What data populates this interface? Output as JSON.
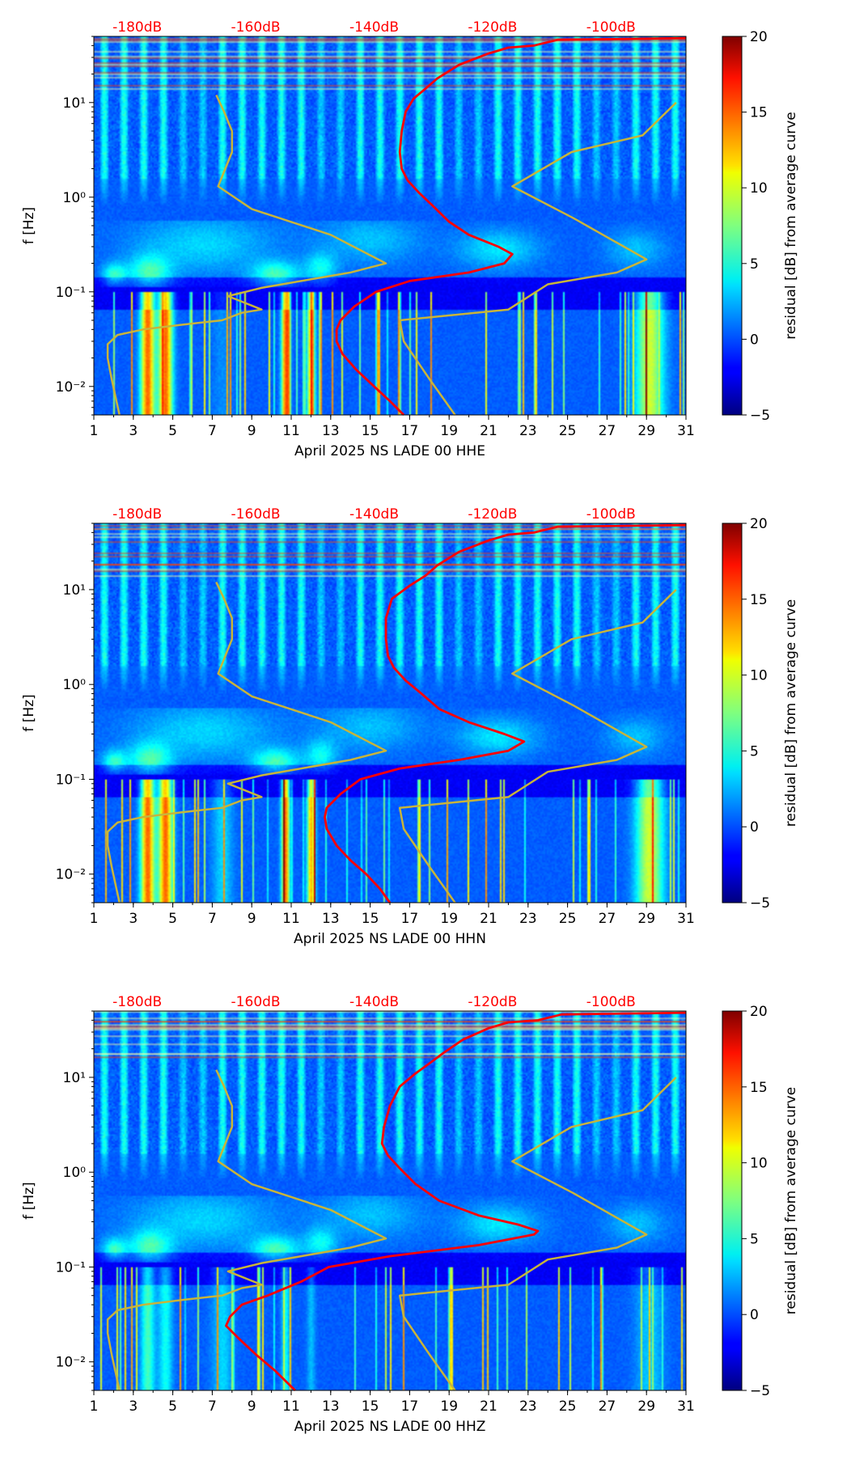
{
  "colors": {
    "top_axis_labels": "#ff0000",
    "nlnm_curve": "#ff0000",
    "model_curves": "#c8b43a",
    "colormap": "jet"
  },
  "chart_data": [
    {
      "type": "heatmap",
      "component": "HHE",
      "xlabel": "April 2025 NS LADE 00 HHE",
      "ylabel": "f [Hz]",
      "colorbar_label": "residual [dB] from average curve",
      "xlim": [
        1,
        31
      ],
      "ylim": [
        0.005,
        50
      ],
      "yscale": "log",
      "x_ticks": [
        "1",
        "3",
        "5",
        "7",
        "9",
        "11",
        "13",
        "15",
        "17",
        "19",
        "21",
        "23",
        "25",
        "27",
        "29",
        "31"
      ],
      "y_ticks": [
        "10⁻²",
        "10⁻¹",
        "10⁰",
        "10¹"
      ],
      "top_ticks": [
        "-180dB",
        "-160dB",
        "-140dB",
        "-120dB",
        "-100dB"
      ],
      "colorbar_range": [
        -5,
        20
      ],
      "colorbar_ticks": [
        "−5",
        "0",
        "5",
        "10",
        "15",
        "20"
      ],
      "red_curve": [
        [
          16.7,
          0.005
        ],
        [
          16,
          0.007
        ],
        [
          15.2,
          0.01
        ],
        [
          14.3,
          0.015
        ],
        [
          13.6,
          0.022
        ],
        [
          13.3,
          0.03
        ],
        [
          13.3,
          0.04
        ],
        [
          13.5,
          0.05
        ],
        [
          14.2,
          0.07
        ],
        [
          15.3,
          0.1
        ],
        [
          17,
          0.13
        ],
        [
          20,
          0.16
        ],
        [
          21.8,
          0.2
        ],
        [
          22.2,
          0.25
        ],
        [
          21.5,
          0.3
        ],
        [
          20,
          0.4
        ],
        [
          19,
          0.55
        ],
        [
          18.2,
          0.8
        ],
        [
          17.5,
          1.1
        ],
        [
          16.9,
          1.5
        ],
        [
          16.6,
          2.0
        ],
        [
          16.5,
          3
        ],
        [
          16.6,
          5
        ],
        [
          16.8,
          8
        ],
        [
          17.2,
          11
        ],
        [
          17.8,
          14
        ],
        [
          18.4,
          18
        ],
        [
          19.5,
          25
        ],
        [
          21,
          33
        ],
        [
          22,
          38
        ],
        [
          23.3,
          40
        ],
        [
          24.5,
          46
        ],
        [
          31,
          48
        ]
      ],
      "olive_curve_a": [
        [
          2.3,
          0.005
        ],
        [
          1.9,
          0.012
        ],
        [
          1.7,
          0.02
        ],
        [
          1.7,
          0.028
        ],
        [
          2.2,
          0.035
        ],
        [
          3.5,
          0.04
        ],
        [
          5.5,
          0.045
        ],
        [
          7.5,
          0.05
        ],
        [
          8.5,
          0.06
        ],
        [
          9.5,
          0.065
        ],
        [
          7.8,
          0.09
        ],
        [
          9.5,
          0.11
        ],
        [
          11.5,
          0.13
        ],
        [
          14,
          0.16
        ],
        [
          15.8,
          0.2
        ],
        [
          13,
          0.4
        ],
        [
          9,
          0.75
        ],
        [
          7.3,
          1.3
        ],
        [
          8,
          3
        ],
        [
          8,
          5
        ],
        [
          7.6,
          8
        ],
        [
          7.2,
          12
        ]
      ],
      "olive_curve_b": [
        [
          19.3,
          0.005
        ],
        [
          18,
          0.012
        ],
        [
          16.7,
          0.03
        ],
        [
          16.5,
          0.05
        ],
        [
          22,
          0.065
        ],
        [
          24,
          0.12
        ],
        [
          27.5,
          0.16
        ],
        [
          29,
          0.22
        ],
        [
          25.3,
          0.6
        ],
        [
          22.2,
          1.3
        ],
        [
          25.2,
          3
        ],
        [
          28.8,
          4.5
        ],
        [
          30.5,
          10
        ]
      ]
    },
    {
      "type": "heatmap",
      "component": "HHN",
      "xlabel": "April 2025 NS LADE 00 HHN",
      "ylabel": "f [Hz]",
      "colorbar_label": "residual [dB] from average curve",
      "xlim": [
        1,
        31
      ],
      "ylim": [
        0.005,
        50
      ],
      "yscale": "log",
      "x_ticks": [
        "1",
        "3",
        "5",
        "7",
        "9",
        "11",
        "13",
        "15",
        "17",
        "19",
        "21",
        "23",
        "25",
        "27",
        "29",
        "31"
      ],
      "y_ticks": [
        "10⁻²",
        "10⁻¹",
        "10⁰",
        "10¹"
      ],
      "top_ticks": [
        "-180dB",
        "-160dB",
        "-140dB",
        "-120dB",
        "-100dB"
      ],
      "colorbar_range": [
        -5,
        20
      ],
      "colorbar_ticks": [
        "−5",
        "0",
        "5",
        "10",
        "15",
        "20"
      ],
      "red_curve": [
        [
          16,
          0.005
        ],
        [
          15.5,
          0.007
        ],
        [
          14.8,
          0.01
        ],
        [
          14,
          0.014
        ],
        [
          13.3,
          0.02
        ],
        [
          12.8,
          0.03
        ],
        [
          12.7,
          0.04
        ],
        [
          12.8,
          0.05
        ],
        [
          13.5,
          0.07
        ],
        [
          14.5,
          0.1
        ],
        [
          16.5,
          0.13
        ],
        [
          19.5,
          0.16
        ],
        [
          22,
          0.2
        ],
        [
          22.8,
          0.25
        ],
        [
          21.8,
          0.3
        ],
        [
          20,
          0.4
        ],
        [
          18.5,
          0.55
        ],
        [
          17.6,
          0.8
        ],
        [
          16.8,
          1.1
        ],
        [
          16.2,
          1.5
        ],
        [
          15.9,
          2.0
        ],
        [
          15.8,
          3
        ],
        [
          15.8,
          5
        ],
        [
          16.1,
          8
        ],
        [
          17,
          11
        ],
        [
          17.8,
          14
        ],
        [
          18.4,
          18
        ],
        [
          19.5,
          25
        ],
        [
          21,
          33
        ],
        [
          22,
          38
        ],
        [
          23.3,
          40
        ],
        [
          24.5,
          46
        ],
        [
          31,
          48
        ]
      ],
      "olive_curve_a": [
        [
          2.3,
          0.005
        ],
        [
          1.9,
          0.012
        ],
        [
          1.7,
          0.02
        ],
        [
          1.7,
          0.028
        ],
        [
          2.2,
          0.035
        ],
        [
          3.5,
          0.04
        ],
        [
          5.5,
          0.045
        ],
        [
          7.5,
          0.05
        ],
        [
          8.5,
          0.06
        ],
        [
          9.5,
          0.065
        ],
        [
          7.8,
          0.09
        ],
        [
          9.5,
          0.11
        ],
        [
          11.5,
          0.13
        ],
        [
          14,
          0.16
        ],
        [
          15.8,
          0.2
        ],
        [
          13,
          0.4
        ],
        [
          9,
          0.75
        ],
        [
          7.3,
          1.3
        ],
        [
          8,
          3
        ],
        [
          8,
          5
        ],
        [
          7.6,
          8
        ],
        [
          7.2,
          12
        ]
      ],
      "olive_curve_b": [
        [
          19.3,
          0.005
        ],
        [
          18,
          0.012
        ],
        [
          16.7,
          0.03
        ],
        [
          16.5,
          0.05
        ],
        [
          22,
          0.065
        ],
        [
          24,
          0.12
        ],
        [
          27.5,
          0.16
        ],
        [
          29,
          0.22
        ],
        [
          25.3,
          0.6
        ],
        [
          22.2,
          1.3
        ],
        [
          25.2,
          3
        ],
        [
          28.8,
          4.5
        ],
        [
          30.5,
          10
        ]
      ]
    },
    {
      "type": "heatmap",
      "component": "HHZ",
      "xlabel": "April 2025 NS LADE 00 HHZ",
      "ylabel": "f [Hz]",
      "colorbar_label": "residual [dB] from average curve",
      "xlim": [
        1,
        31
      ],
      "ylim": [
        0.005,
        50
      ],
      "yscale": "log",
      "x_ticks": [
        "1",
        "3",
        "5",
        "7",
        "9",
        "11",
        "13",
        "15",
        "17",
        "19",
        "21",
        "23",
        "25",
        "27",
        "29",
        "31"
      ],
      "y_ticks": [
        "10⁻²",
        "10⁻¹",
        "10⁰",
        "10¹"
      ],
      "top_ticks": [
        "-180dB",
        "-160dB",
        "-140dB",
        "-120dB",
        "-100dB"
      ],
      "colorbar_range": [
        -5,
        20
      ],
      "colorbar_ticks": [
        "−5",
        "0",
        "5",
        "10",
        "15",
        "20"
      ],
      "red_curve": [
        [
          11.2,
          0.005
        ],
        [
          10.2,
          0.008
        ],
        [
          9.2,
          0.012
        ],
        [
          8.3,
          0.018
        ],
        [
          7.7,
          0.024
        ],
        [
          7.9,
          0.03
        ],
        [
          8.5,
          0.04
        ],
        [
          9.8,
          0.05
        ],
        [
          11.5,
          0.07
        ],
        [
          12.9,
          0.1
        ],
        [
          16,
          0.13
        ],
        [
          20.5,
          0.17
        ],
        [
          23.3,
          0.22
        ],
        [
          23.5,
          0.24
        ],
        [
          22.5,
          0.28
        ],
        [
          20.5,
          0.35
        ],
        [
          18.5,
          0.5
        ],
        [
          17.3,
          0.75
        ],
        [
          16.5,
          1.1
        ],
        [
          15.9,
          1.5
        ],
        [
          15.6,
          2.0
        ],
        [
          15.7,
          3
        ],
        [
          16,
          5
        ],
        [
          16.5,
          8
        ],
        [
          17.3,
          11
        ],
        [
          18,
          14
        ],
        [
          18.7,
          18
        ],
        [
          19.7,
          25
        ],
        [
          21,
          33
        ],
        [
          22,
          38
        ],
        [
          23.5,
          40
        ],
        [
          24.7,
          46
        ],
        [
          31,
          48
        ]
      ],
      "olive_curve_a": [
        [
          2.3,
          0.005
        ],
        [
          1.9,
          0.012
        ],
        [
          1.7,
          0.02
        ],
        [
          1.7,
          0.028
        ],
        [
          2.2,
          0.035
        ],
        [
          3.5,
          0.04
        ],
        [
          5.5,
          0.045
        ],
        [
          7.5,
          0.05
        ],
        [
          8.5,
          0.06
        ],
        [
          9.5,
          0.065
        ],
        [
          7.8,
          0.09
        ],
        [
          9.5,
          0.11
        ],
        [
          11.5,
          0.13
        ],
        [
          14,
          0.16
        ],
        [
          15.8,
          0.2
        ],
        [
          13,
          0.4
        ],
        [
          9,
          0.75
        ],
        [
          7.3,
          1.3
        ],
        [
          8,
          3
        ],
        [
          8,
          5
        ],
        [
          7.6,
          8
        ],
        [
          7.2,
          12
        ]
      ],
      "olive_curve_b": [
        [
          19.3,
          0.005
        ],
        [
          18,
          0.012
        ],
        [
          16.7,
          0.03
        ],
        [
          16.5,
          0.05
        ],
        [
          22,
          0.065
        ],
        [
          24,
          0.12
        ],
        [
          27.5,
          0.16
        ],
        [
          29,
          0.22
        ],
        [
          25.3,
          0.6
        ],
        [
          22.2,
          1.3
        ],
        [
          25.2,
          3
        ],
        [
          28.8,
          4.5
        ],
        [
          30.5,
          10
        ]
      ]
    }
  ]
}
